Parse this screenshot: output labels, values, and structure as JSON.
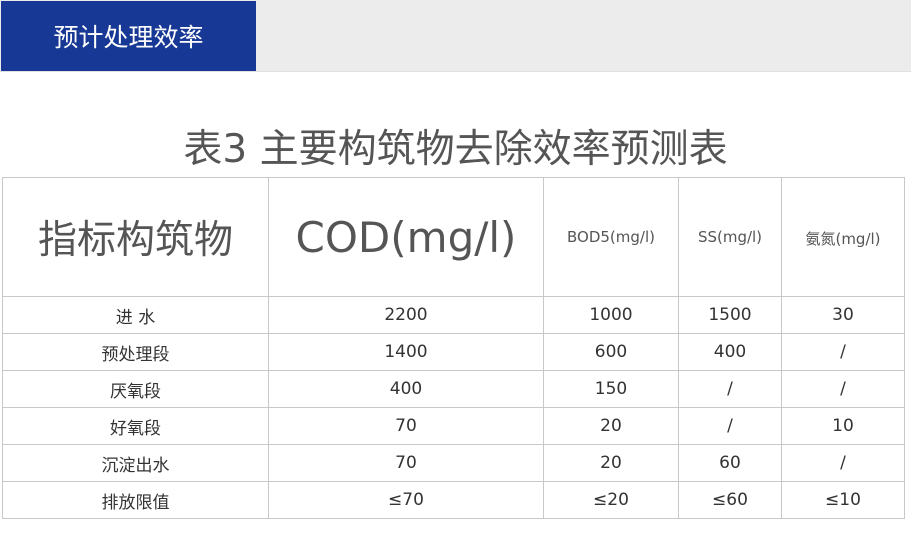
{
  "header": {
    "tab_label": "预计处理效率",
    "accent_color": "#173894"
  },
  "table": {
    "title": "表3 主要构筑物去除效率预测表",
    "columns": [
      "指标构筑物",
      "COD(mg/l)",
      "BOD5(mg/l)",
      "SS(mg/l)",
      "氨氮(mg/l)"
    ],
    "rows": [
      [
        "进  水",
        "2200",
        "1000",
        "1500",
        "30"
      ],
      [
        "预处理段",
        "1400",
        "600",
        "400",
        "/"
      ],
      [
        "厌氧段",
        "400",
        "150",
        "/",
        "/"
      ],
      [
        "好氧段",
        "70",
        "20",
        "/",
        "10"
      ],
      [
        "沉淀出水",
        "70",
        "20",
        "60",
        "/"
      ],
      [
        "排放限值",
        "≤70",
        "≤20",
        "≤60",
        "≤10"
      ]
    ]
  }
}
